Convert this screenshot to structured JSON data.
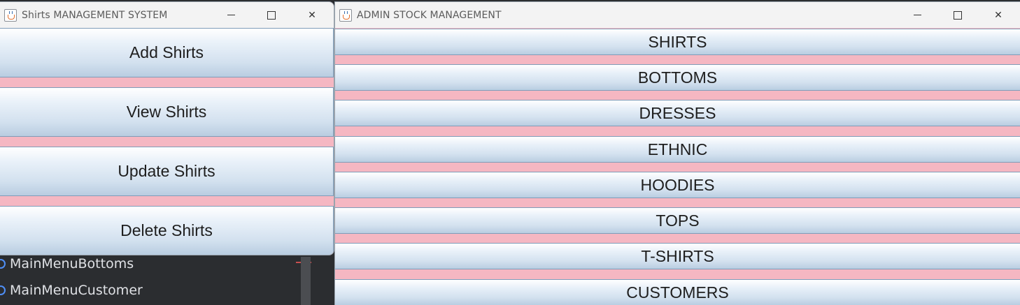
{
  "ide": {
    "items": [
      {
        "label": "MainMenuBottoms"
      },
      {
        "label": "MainMenuCustomer"
      }
    ]
  },
  "shirts_window": {
    "title": "Shirts MANAGEMENT SYSTEM",
    "buttons": [
      {
        "label": "Add Shirts"
      },
      {
        "label": "View Shirts"
      },
      {
        "label": "Update Shirts"
      },
      {
        "label": "Delete Shirts"
      }
    ]
  },
  "admin_window": {
    "title": "ADMIN STOCK MANAGEMENT",
    "buttons": [
      {
        "label": "SHIRTS"
      },
      {
        "label": "BOTTOMS"
      },
      {
        "label": "DRESSES"
      },
      {
        "label": "ETHNIC"
      },
      {
        "label": "HOODIES"
      },
      {
        "label": "TOPS"
      },
      {
        "label": "T-SHIRTS"
      },
      {
        "label": "CUSTOMERS"
      }
    ]
  },
  "colors": {
    "panel_background": "#f5b7c2",
    "button_border": "#7f9db9",
    "ide_background": "#2b2d30"
  }
}
